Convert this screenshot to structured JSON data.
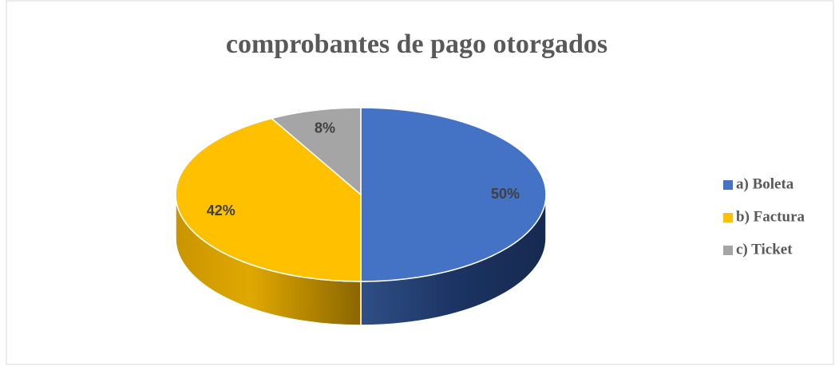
{
  "chart_data": {
    "type": "pie",
    "title": "comprobantes de pago otorgados",
    "categories": [
      "a) Boleta",
      "b) Factura",
      "c) Ticket"
    ],
    "values": [
      50,
      42,
      8
    ],
    "value_labels": [
      "50%",
      "42%",
      "8%"
    ],
    "colors": [
      "#4472c4",
      "#ffc000",
      "#a5a5a5"
    ],
    "legend": "right"
  }
}
